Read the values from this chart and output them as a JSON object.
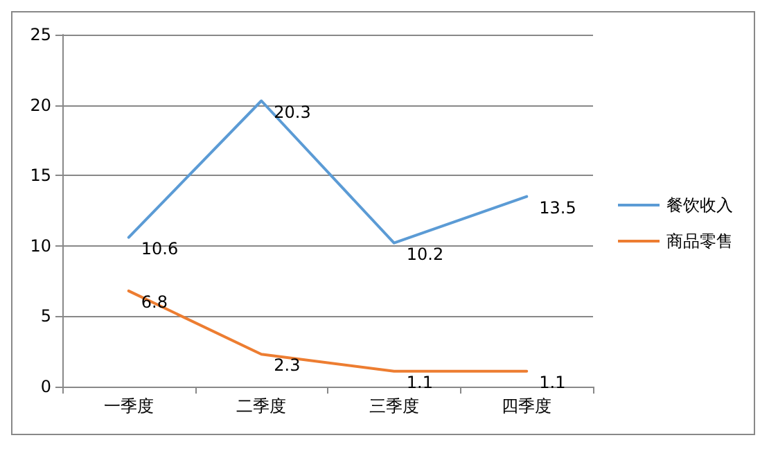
{
  "chart_data": {
    "type": "line",
    "categories": [
      "一季度",
      "二季度",
      "三季度",
      "四季度"
    ],
    "series": [
      {
        "name": "餐饮收入",
        "color": "#5b9bd5",
        "values": [
          10.6,
          20.3,
          10.2,
          13.5
        ]
      },
      {
        "name": "商品零售",
        "color": "#ed7d31",
        "values": [
          6.8,
          2.3,
          1.1,
          1.1
        ]
      }
    ],
    "ylim": [
      0,
      25
    ],
    "yticks": [
      0,
      5,
      10,
      15,
      20,
      25
    ],
    "grid": "y",
    "legend": "right",
    "data_labels": true,
    "marker": "none",
    "line_style": "solid"
  }
}
